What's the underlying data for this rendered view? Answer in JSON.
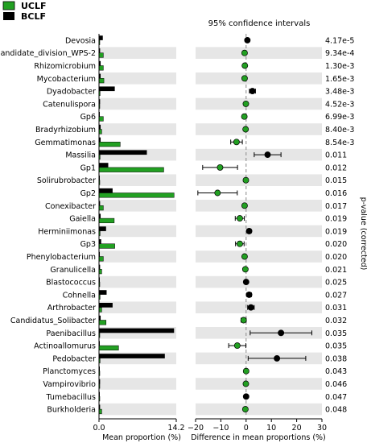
{
  "colors": {
    "uclf": "#22a022",
    "bclf": "#000000",
    "stripe": "#e6e6e6",
    "dot_uclf": "#22a022",
    "dot_bclf": "#000000"
  },
  "chart_data": {
    "type": "extended-error-bar",
    "legend": {
      "placement": "top-left",
      "entries": [
        {
          "name": "UCLF",
          "color": "#22a022"
        },
        {
          "name": "BCLF",
          "color": "#000000"
        }
      ]
    },
    "categories": [
      "Devosia",
      "candidate_division_WPS-2",
      "Rhizomicrobium",
      "Mycobacterium",
      "Dyadobacter",
      "Catenulispora",
      "Gp6",
      "Bradyrhizobium",
      "Gemmatimonas",
      "Massilia",
      "Gp1",
      "Solirubrobacter",
      "Gp2",
      "Conexibacter",
      "Gaiella",
      "Herminiimonas",
      "Gp3",
      "Phenylobacterium",
      "Granulicella",
      "Blastococcus",
      "Cohnella",
      "Arthrobacter",
      "Candidatus_Solibacter",
      "Paenibacillus",
      "Actinoallomurus",
      "Pedobacter",
      "Planctomyces",
      "Vampirovibrio",
      "Tumebacillus",
      "Burkholderia"
    ],
    "mean_proportion": {
      "xlabel": "Mean proportion (%)",
      "xlim": [
        0,
        14.2
      ],
      "ticks": [
        "0.0",
        "14.2"
      ],
      "series": [
        {
          "name": "UCLF",
          "values": [
            0.1,
            0.8,
            0.8,
            0.9,
            0.2,
            0.1,
            0.8,
            0.5,
            3.9,
            0.2,
            11.9,
            0.1,
            13.8,
            0.8,
            2.8,
            0.2,
            2.9,
            0.8,
            0.5,
            0.1,
            0.2,
            0.5,
            1.3,
            0.1,
            3.6,
            0.2,
            0.1,
            0.1,
            0.1,
            0.5
          ]
        },
        {
          "name": "BCLF",
          "values": [
            0.7,
            0.2,
            0.3,
            0.3,
            2.9,
            0.2,
            0.1,
            0.3,
            0.3,
            8.8,
            1.7,
            0.1,
            2.5,
            0.2,
            0.3,
            1.3,
            0.4,
            0.1,
            0.2,
            0.1,
            1.4,
            2.5,
            0.3,
            13.8,
            0.1,
            12.1,
            0.1,
            0.2,
            0.1,
            0.2
          ]
        }
      ]
    },
    "difference": {
      "title": "95% confidence intervals",
      "xlabel": "Difference in mean proportions (%)",
      "xlim": [
        -20,
        30
      ],
      "ticks": [
        -20,
        -10,
        0,
        10,
        20,
        30
      ],
      "values": [
        0.5,
        -0.6,
        -0.5,
        -0.6,
        2.5,
        -0.1,
        -0.7,
        -0.2,
        -3.8,
        8.5,
        -10.3,
        -0.1,
        -11.3,
        -0.6,
        -2.5,
        1.2,
        -2.5,
        -0.6,
        -0.3,
        0.0,
        1.2,
        1.9,
        -1.0,
        13.8,
        -3.5,
        12.2,
        0.0,
        -0.1,
        0.0,
        -0.3
      ],
      "ci_low": [
        0.1,
        -1.0,
        -0.9,
        -1.1,
        1.3,
        -0.3,
        -1.1,
        -0.5,
        -6.1,
        3.2,
        -17.2,
        -0.3,
        -19.1,
        -1.0,
        -4.3,
        0.4,
        -4.2,
        -1.0,
        -0.6,
        -0.2,
        0.3,
        0.6,
        -2.0,
        1.6,
        -6.9,
        0.8,
        -0.2,
        -0.3,
        -0.2,
        -0.6
      ],
      "ci_high": [
        0.9,
        -0.2,
        -0.1,
        -0.1,
        3.7,
        0.1,
        -0.3,
        0.1,
        -1.5,
        13.8,
        -3.4,
        0.1,
        -3.5,
        -0.2,
        -0.7,
        2.0,
        -0.8,
        -0.2,
        0.0,
        0.2,
        2.1,
        3.2,
        0.0,
        26.0,
        -0.1,
        23.6,
        0.2,
        0.1,
        0.2,
        0.0
      ],
      "favors": [
        "BCLF",
        "UCLF",
        "UCLF",
        "UCLF",
        "BCLF",
        "UCLF",
        "UCLF",
        "UCLF",
        "UCLF",
        "BCLF",
        "UCLF",
        "UCLF",
        "UCLF",
        "UCLF",
        "UCLF",
        "BCLF",
        "UCLF",
        "UCLF",
        "UCLF",
        "BCLF",
        "BCLF",
        "BCLF",
        "UCLF",
        "BCLF",
        "UCLF",
        "BCLF",
        "UCLF",
        "UCLF",
        "BCLF",
        "UCLF"
      ]
    },
    "p_values": {
      "label": "p-value (corrected)",
      "values": [
        "4.17e-5",
        "9.34e-4",
        "1.30e-3",
        "1.65e-3",
        "3.48e-3",
        "4.52e-3",
        "6.99e-3",
        "8.40e-3",
        "8.54e-3",
        "0.011",
        "0.012",
        "0.015",
        "0.016",
        "0.017",
        "0.019",
        "0.019",
        "0.020",
        "0.020",
        "0.021",
        "0.025",
        "0.027",
        "0.031",
        "0.032",
        "0.035",
        "0.035",
        "0.038",
        "0.043",
        "0.046",
        "0.047",
        "0.048"
      ]
    },
    "grid": false
  }
}
